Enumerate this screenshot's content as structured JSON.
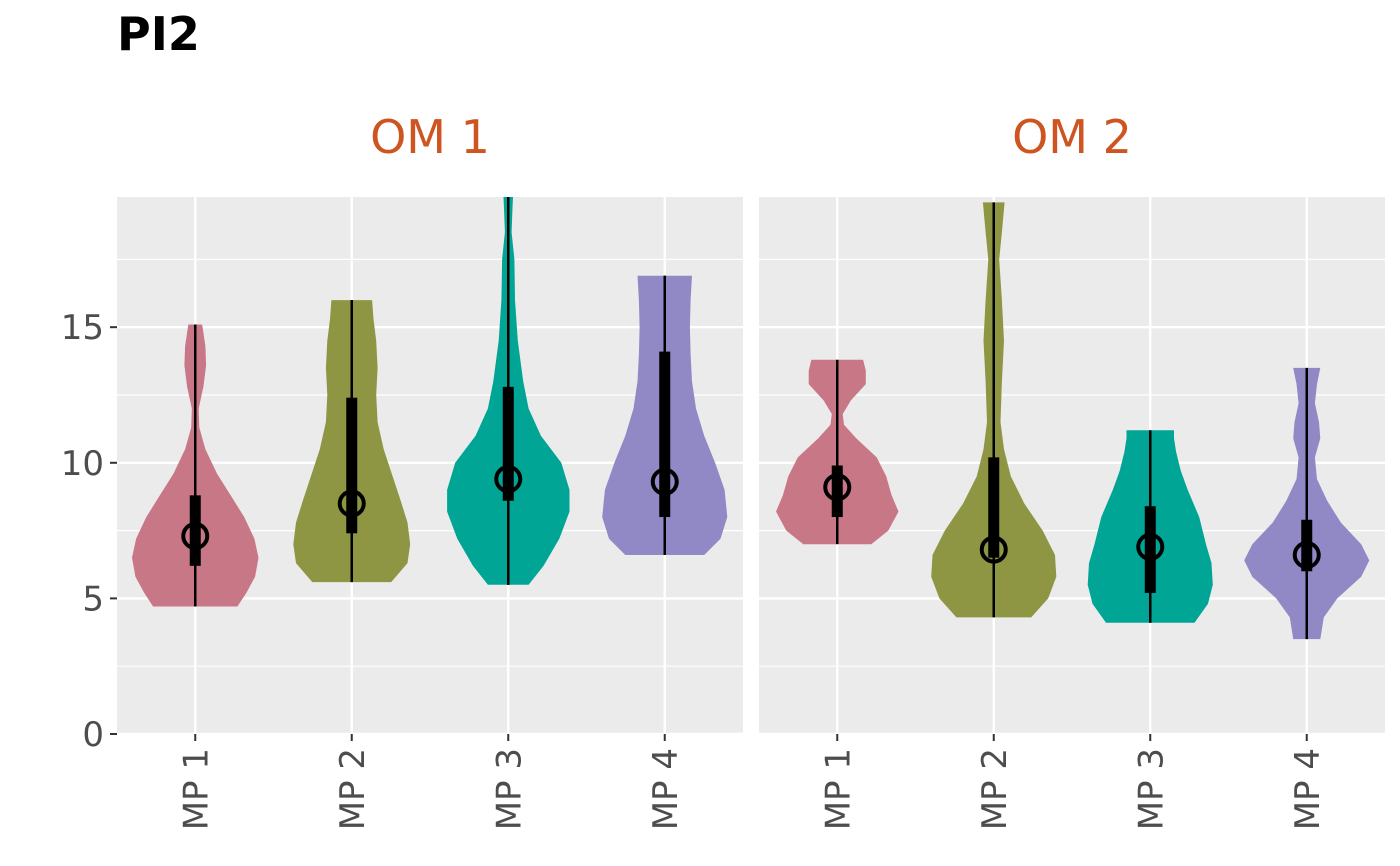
{
  "chart_data": {
    "type": "violin",
    "title": "PI2",
    "strip_color": "#CE5521",
    "panel_bg": "#EBEBEB",
    "ylim": [
      0,
      19.8
    ],
    "y_ticks": [
      0,
      5,
      10,
      15
    ],
    "y_tick_labels": [
      "0",
      "5",
      "10",
      "15"
    ],
    "categories": [
      "MP 1",
      "MP 2",
      "MP 3",
      "MP 4"
    ],
    "category_colors": [
      "#C87786",
      "#8E9643",
      "#00A595",
      "#9189C6"
    ],
    "panels": [
      {
        "label": "OM 1",
        "violins": [
          {
            "category": "MP 1",
            "min": 4.7,
            "q1": 6.2,
            "median": 7.3,
            "q3": 8.8,
            "max": 15.1,
            "profile": [
              [
                4.7,
                0.62
              ],
              [
                5.2,
                0.75
              ],
              [
                5.8,
                0.88
              ],
              [
                6.5,
                0.93
              ],
              [
                7.2,
                0.87
              ],
              [
                8.0,
                0.72
              ],
              [
                8.8,
                0.52
              ],
              [
                9.6,
                0.32
              ],
              [
                10.5,
                0.15
              ],
              [
                11.3,
                0.06
              ],
              [
                12.0,
                0.05
              ],
              [
                12.8,
                0.12
              ],
              [
                13.6,
                0.16
              ],
              [
                14.3,
                0.15
              ],
              [
                14.8,
                0.12
              ],
              [
                15.1,
                0.1
              ]
            ]
          },
          {
            "category": "MP 2",
            "min": 5.6,
            "q1": 7.4,
            "median": 8.5,
            "q3": 12.4,
            "max": 16.0,
            "profile": [
              [
                5.6,
                0.58
              ],
              [
                6.3,
                0.82
              ],
              [
                7.0,
                0.86
              ],
              [
                7.8,
                0.82
              ],
              [
                8.6,
                0.72
              ],
              [
                9.5,
                0.6
              ],
              [
                10.5,
                0.47
              ],
              [
                11.5,
                0.38
              ],
              [
                12.5,
                0.36
              ],
              [
                13.5,
                0.38
              ],
              [
                14.5,
                0.36
              ],
              [
                15.3,
                0.32
              ],
              [
                16.0,
                0.3
              ]
            ]
          },
          {
            "category": "MP 3",
            "min": 5.5,
            "q1": 8.6,
            "median": 9.4,
            "q3": 12.8,
            "max": 19.8,
            "profile": [
              [
                5.5,
                0.3
              ],
              [
                6.2,
                0.52
              ],
              [
                7.2,
                0.75
              ],
              [
                8.2,
                0.9
              ],
              [
                9.0,
                0.9
              ],
              [
                10.0,
                0.78
              ],
              [
                11.0,
                0.48
              ],
              [
                12.0,
                0.3
              ],
              [
                13.0,
                0.22
              ],
              [
                14.5,
                0.14
              ],
              [
                16.0,
                0.1
              ],
              [
                17.5,
                0.09
              ],
              [
                18.5,
                0.05
              ],
              [
                19.2,
                0.06
              ],
              [
                19.8,
                0.07
              ]
            ]
          },
          {
            "category": "MP 4",
            "min": 6.6,
            "q1": 8.0,
            "median": 9.3,
            "q3": 14.1,
            "max": 16.9,
            "profile": [
              [
                6.6,
                0.58
              ],
              [
                7.2,
                0.82
              ],
              [
                8.0,
                0.92
              ],
              [
                9.0,
                0.88
              ],
              [
                10.0,
                0.74
              ],
              [
                11.0,
                0.58
              ],
              [
                12.0,
                0.46
              ],
              [
                13.0,
                0.4
              ],
              [
                14.0,
                0.38
              ],
              [
                15.0,
                0.37
              ],
              [
                16.0,
                0.38
              ],
              [
                16.9,
                0.4
              ]
            ]
          }
        ]
      },
      {
        "label": "OM 2",
        "violins": [
          {
            "category": "MP 1",
            "min": 7.0,
            "q1": 8.0,
            "median": 9.1,
            "q3": 9.9,
            "max": 13.8,
            "profile": [
              [
                7.0,
                0.5
              ],
              [
                7.5,
                0.75
              ],
              [
                8.2,
                0.9
              ],
              [
                8.8,
                0.8
              ],
              [
                9.5,
                0.72
              ],
              [
                10.2,
                0.58
              ],
              [
                10.9,
                0.28
              ],
              [
                11.4,
                0.1
              ],
              [
                11.8,
                0.08
              ],
              [
                12.3,
                0.2
              ],
              [
                12.9,
                0.42
              ],
              [
                13.4,
                0.42
              ],
              [
                13.8,
                0.38
              ]
            ]
          },
          {
            "category": "MP 2",
            "min": 4.3,
            "q1": 6.5,
            "median": 6.8,
            "q3": 10.2,
            "max": 19.6,
            "profile": [
              [
                4.3,
                0.55
              ],
              [
                5.0,
                0.8
              ],
              [
                5.8,
                0.92
              ],
              [
                6.6,
                0.9
              ],
              [
                7.5,
                0.72
              ],
              [
                8.5,
                0.45
              ],
              [
                9.5,
                0.25
              ],
              [
                10.5,
                0.15
              ],
              [
                11.5,
                0.1
              ],
              [
                13.0,
                0.12
              ],
              [
                14.5,
                0.15
              ],
              [
                16.0,
                0.12
              ],
              [
                17.5,
                0.08
              ],
              [
                18.5,
                0.12
              ],
              [
                19.6,
                0.16
              ]
            ]
          },
          {
            "category": "MP 3",
            "min": 4.1,
            "q1": 5.2,
            "median": 6.9,
            "q3": 8.4,
            "max": 11.2,
            "profile": [
              [
                4.1,
                0.65
              ],
              [
                4.8,
                0.85
              ],
              [
                5.5,
                0.92
              ],
              [
                6.3,
                0.9
              ],
              [
                7.0,
                0.82
              ],
              [
                8.0,
                0.72
              ],
              [
                9.0,
                0.55
              ],
              [
                9.7,
                0.45
              ],
              [
                10.4,
                0.38
              ],
              [
                10.9,
                0.35
              ],
              [
                11.2,
                0.35
              ]
            ]
          },
          {
            "category": "MP 4",
            "min": 3.5,
            "q1": 6.0,
            "median": 6.6,
            "q3": 7.9,
            "max": 13.5,
            "profile": [
              [
                3.5,
                0.2
              ],
              [
                4.3,
                0.25
              ],
              [
                5.0,
                0.45
              ],
              [
                5.8,
                0.8
              ],
              [
                6.4,
                0.92
              ],
              [
                7.0,
                0.8
              ],
              [
                7.8,
                0.5
              ],
              [
                8.6,
                0.3
              ],
              [
                9.4,
                0.15
              ],
              [
                10.2,
                0.12
              ],
              [
                10.9,
                0.2
              ],
              [
                11.5,
                0.18
              ],
              [
                12.2,
                0.12
              ],
              [
                12.9,
                0.15
              ],
              [
                13.5,
                0.2
              ]
            ]
          }
        ]
      }
    ]
  }
}
